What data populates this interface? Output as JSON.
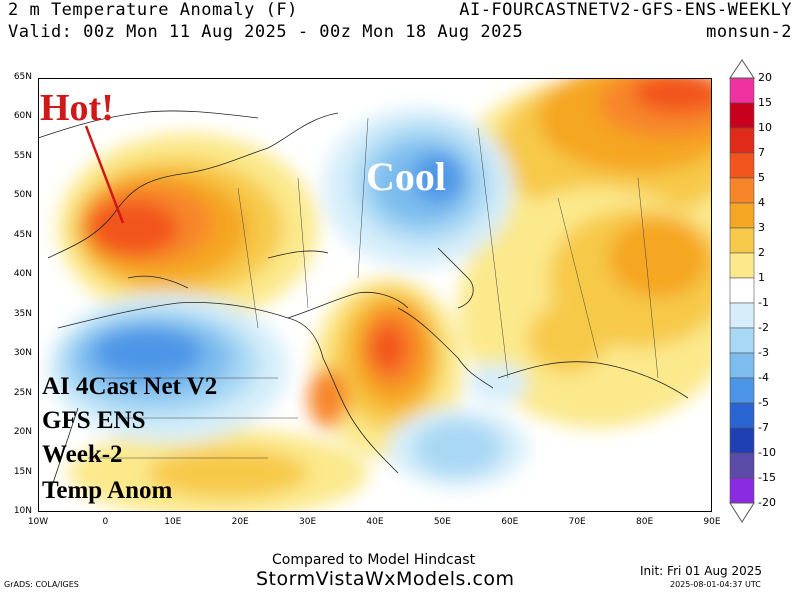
{
  "header": {
    "line1_left": "2 m Temperature Anomaly (F)",
    "line1_right": "AI-FOURCASTNETV2-GFS-ENS-WEEKLY",
    "line2_left": "Valid: 00z Mon 11 Aug 2025 - 00z Mon 18 Aug 2025",
    "line2_right": "monsun-2"
  },
  "map": {
    "lat_labels": [
      "65N",
      "60N",
      "55N",
      "50N",
      "45N",
      "40N",
      "35N",
      "30N",
      "25N",
      "20N",
      "15N",
      "10N"
    ],
    "lon_labels": [
      "10W",
      "0",
      "10E",
      "20E",
      "30E",
      "40E",
      "50E",
      "60E",
      "70E",
      "80E",
      "90E"
    ],
    "annotation_hot": "Hot!",
    "annotation_cool": "Cool",
    "overlay_lines": [
      "AI 4Cast Net V2",
      "GFS ENS",
      "Week-2",
      "Temp Anom"
    ]
  },
  "colorbar": {
    "labels": [
      "20",
      "15",
      "10",
      "7",
      "5",
      "4",
      "3",
      "2",
      "1",
      "-1",
      "-2",
      "-3",
      "-4",
      "-5",
      "-7",
      "-10",
      "-15",
      "-20"
    ],
    "colors": [
      "#f032a0",
      "#c8001e",
      "#e02a1a",
      "#f2541e",
      "#f7862a",
      "#f5a623",
      "#f7c94a",
      "#fbe98c",
      "#ffffff",
      "#d6eefa",
      "#a9d8f4",
      "#7cbcee",
      "#4d95e6",
      "#2a64d2",
      "#1f3fb4",
      "#5a4ba8",
      "#8a2be2"
    ]
  },
  "footer": {
    "compared": "Compared to Model Hindcast",
    "site": "StormVistaWxModels.com",
    "init": "Init: Fri 01 Aug 2025",
    "timestamp": "2025-08-01-04:37 UTC",
    "grads": "GrADS: COLA/IGES"
  }
}
